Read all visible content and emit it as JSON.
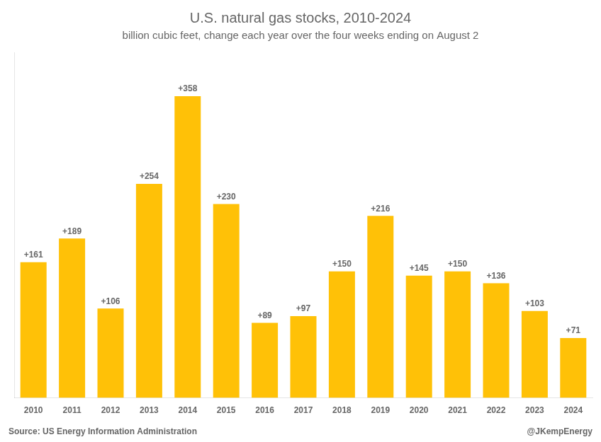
{
  "chart_data": {
    "type": "bar",
    "title": "U.S. natural gas stocks, 2010-2024",
    "subtitle": "billion cubic feet, change each year over the four weeks ending on August 2",
    "categories": [
      "2010",
      "2011",
      "2012",
      "2013",
      "2014",
      "2015",
      "2016",
      "2017",
      "2018",
      "2019",
      "2020",
      "2021",
      "2022",
      "2023",
      "2024"
    ],
    "values": [
      161,
      189,
      106,
      254,
      358,
      230,
      89,
      97,
      150,
      216,
      145,
      150,
      136,
      103,
      71
    ],
    "value_labels": [
      "+161",
      "+189",
      "+106",
      "+254",
      "+358",
      "+230",
      "+89",
      "+97",
      "+150",
      "+216",
      "+145",
      "+150",
      "+136",
      "+103",
      "+71"
    ],
    "data_labels": true,
    "color": "#FFC107",
    "ylim": [
      0,
      410
    ],
    "grid": false,
    "tick_labels": "x",
    "source": "Source: US Energy Information Administration",
    "credit": "@JKempEnergy"
  }
}
